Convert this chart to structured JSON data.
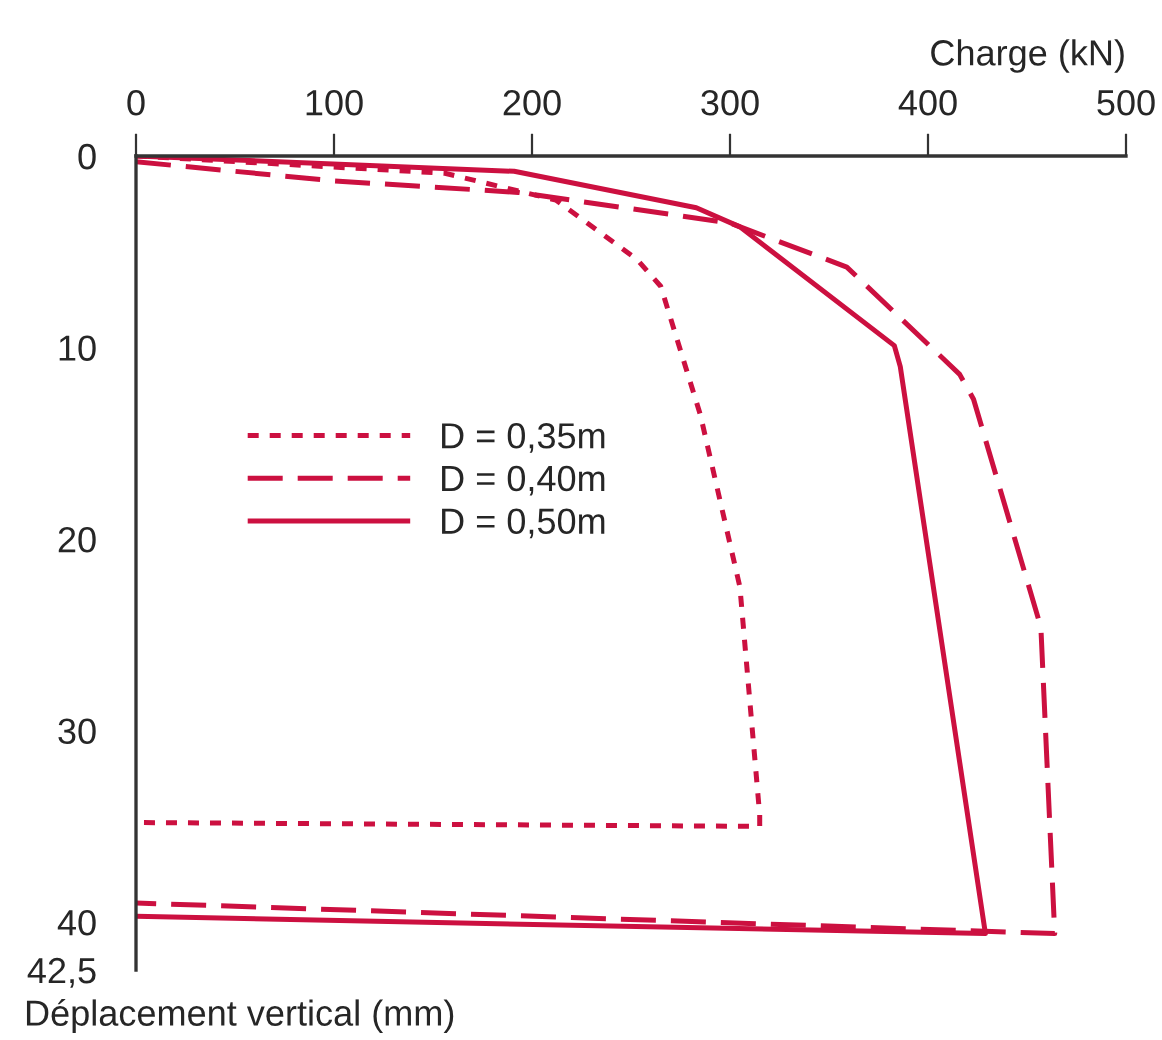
{
  "chart_data": {
    "type": "line",
    "xlabel": "Charge (kN)",
    "ylabel": "Déplacement vertical (mm)",
    "xlim": [
      0,
      500
    ],
    "xticks": [
      0,
      100,
      200,
      300,
      400,
      500
    ],
    "ylim": [
      42.5,
      0
    ],
    "yticks": [
      0,
      10,
      20,
      30,
      40,
      {
        "value": 42.5,
        "label": "42,5"
      }
    ],
    "legend": "center left",
    "grid": false,
    "series": [
      {
        "name": "D = 0,35m",
        "color": "#cc1040",
        "line_style": "dotted",
        "x": [
          0,
          156,
          212,
          253,
          265,
          285,
          305,
          315,
          315,
          0
        ],
        "values": [
          0,
          0.9,
          2.3,
          5.4,
          6.8,
          13.5,
          22.5,
          34.4,
          35,
          34.8
        ]
      },
      {
        "name": "D = 0,40m",
        "color": "#cc1040",
        "line_style": "dashed",
        "x": [
          0,
          100,
          193,
          300,
          359,
          416,
          423,
          457,
          464,
          0
        ],
        "values": [
          0.3,
          1.3,
          1.9,
          3.5,
          5.8,
          11.4,
          12.7,
          24.6,
          40.6,
          39
        ]
      },
      {
        "name": "D = 0,50m",
        "color": "#cc1040",
        "line_style": "solid",
        "x": [
          0,
          191,
          283,
          305,
          383,
          386,
          429,
          0
        ],
        "values": [
          0,
          0.8,
          2.7,
          3.7,
          9.9,
          11,
          40.6,
          39.7
        ]
      }
    ]
  }
}
